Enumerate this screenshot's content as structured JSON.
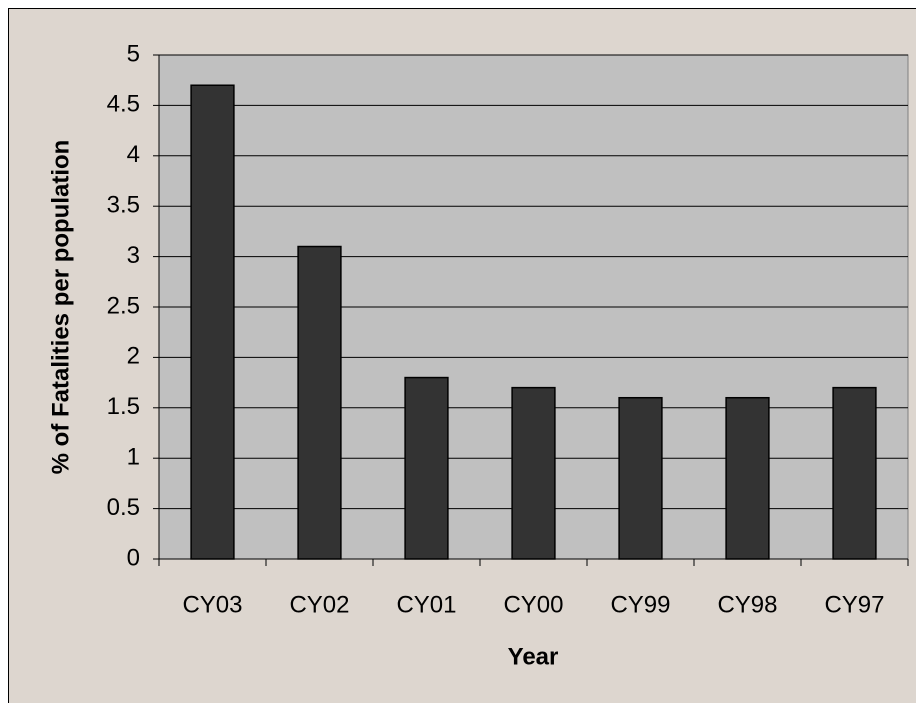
{
  "chart_data": {
    "type": "bar",
    "x_label": "Year",
    "y_label": "% of Fatalities per population",
    "categories": [
      "CY03",
      "CY02",
      "CY01",
      "CY00",
      "CY99",
      "CY98",
      "CY97"
    ],
    "values": [
      4.7,
      3.1,
      1.8,
      1.7,
      1.6,
      1.6,
      1.7
    ],
    "color": "#333333",
    "ylim": [
      0,
      5
    ],
    "yticks": [
      0,
      0.5,
      1,
      1.5,
      2,
      2.5,
      3,
      3.5,
      4,
      4.5,
      5
    ],
    "grid": true
  }
}
